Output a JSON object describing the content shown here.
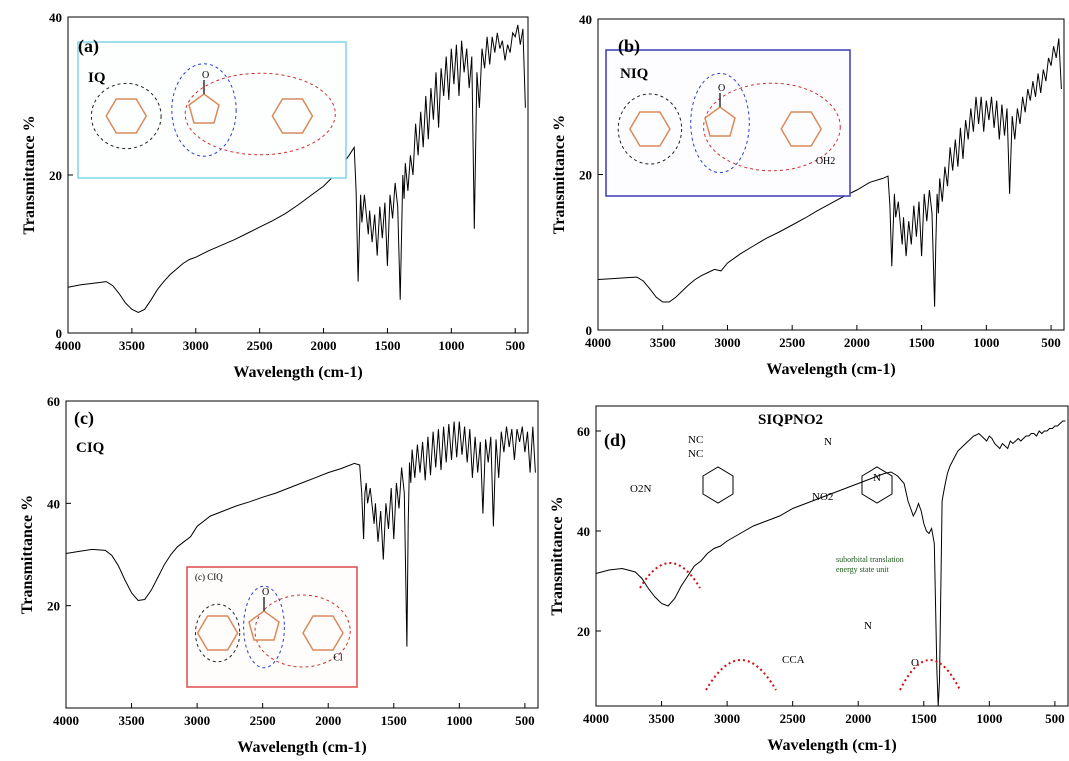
{
  "chart_data": [
    {
      "type": "line",
      "panel": "(a)",
      "sample_label": "IQ",
      "xlabel": "Wavelength (cm-1)",
      "ylabel": "Transmittance %",
      "xlim": [
        4000,
        400
      ],
      "ylim": [
        0,
        40
      ],
      "xticks": [
        4000,
        3500,
        3000,
        2500,
        2000,
        1500,
        1000,
        500
      ],
      "yticks": [
        0,
        20,
        40
      ],
      "inset_labels": [
        "(a)",
        "IQ",
        "O"
      ],
      "series": [
        {
          "x": [
            4000,
            3900,
            3800,
            3700,
            3650,
            3600,
            3550,
            3500,
            3450,
            3400,
            3350,
            3300,
            3250,
            3200,
            3150,
            3100,
            3050,
            3000,
            2900,
            2800,
            2700,
            2600,
            2500,
            2400,
            2300,
            2200,
            2100,
            2000,
            1900,
            1800,
            1760,
            1745,
            1730,
            1720,
            1710,
            1700,
            1680,
            1650,
            1640,
            1620,
            1600,
            1580,
            1560,
            1540,
            1520,
            1500,
            1480,
            1460,
            1440,
            1420,
            1400,
            1390,
            1380,
            1370,
            1360,
            1340,
            1320,
            1300,
            1280,
            1260,
            1240,
            1220,
            1200,
            1180,
            1160,
            1140,
            1120,
            1100,
            1080,
            1060,
            1040,
            1020,
            1000,
            980,
            960,
            940,
            920,
            900,
            880,
            860,
            840,
            820,
            800,
            780,
            760,
            740,
            720,
            700,
            680,
            660,
            640,
            620,
            600,
            580,
            560,
            540,
            520,
            500,
            480,
            460,
            440,
            420
          ],
          "y": [
            5.8,
            6.1,
            6.3,
            6.5,
            6.0,
            5.0,
            3.8,
            3.0,
            2.6,
            3.0,
            4.2,
            5.5,
            6.5,
            7.4,
            8.1,
            8.8,
            9.3,
            9.6,
            10.4,
            11.1,
            11.8,
            12.6,
            13.4,
            14.2,
            15.1,
            16.2,
            17.4,
            18.6,
            20.2,
            22.5,
            23.5,
            18.0,
            6.5,
            12.0,
            17.5,
            14.0,
            17.5,
            12.5,
            15.5,
            11.5,
            15.0,
            9.8,
            16.0,
            12.0,
            16.5,
            8.5,
            17.5,
            14.5,
            19.0,
            16.0,
            4.2,
            12.0,
            20.0,
            17.0,
            21.5,
            18.0,
            22.5,
            20.0,
            26.5,
            22.5,
            28.0,
            23.5,
            30.0,
            24.5,
            31.0,
            27.0,
            33.0,
            26.0,
            33.5,
            30.0,
            35.0,
            29.5,
            36.0,
            31.5,
            36.5,
            30.0,
            37.0,
            33.0,
            36.0,
            31.0,
            35.0,
            13.2,
            33.0,
            28.5,
            36.0,
            33.5,
            37.5,
            34.0,
            37.5,
            35.5,
            38.0,
            36.0,
            37.0,
            34.5,
            36.5,
            35.5,
            38.0,
            37.5,
            39.0,
            36.5,
            38.5,
            28.5
          ]
        }
      ]
    },
    {
      "type": "line",
      "panel": "(b)",
      "sample_label": "NIQ",
      "xlabel": "Wavelength (cm-1)",
      "ylabel": "Transmittance %",
      "xlim": [
        4000,
        400
      ],
      "ylim": [
        0,
        40
      ],
      "xticks": [
        4000,
        3500,
        3000,
        2500,
        2000,
        1500,
        1000,
        500
      ],
      "yticks": [
        0,
        20,
        40
      ],
      "inset_labels": [
        "NIQ",
        "O",
        "OH2"
      ],
      "series": [
        {
          "x": [
            4000,
            3900,
            3800,
            3700,
            3650,
            3600,
            3550,
            3500,
            3450,
            3400,
            3350,
            3300,
            3250,
            3200,
            3150,
            3100,
            3050,
            3000,
            2900,
            2800,
            2700,
            2600,
            2500,
            2400,
            2300,
            2200,
            2100,
            2000,
            1900,
            1800,
            1760,
            1745,
            1730,
            1720,
            1710,
            1700,
            1680,
            1650,
            1640,
            1620,
            1600,
            1580,
            1560,
            1540,
            1520,
            1500,
            1480,
            1460,
            1440,
            1420,
            1400,
            1390,
            1380,
            1370,
            1360,
            1340,
            1320,
            1300,
            1280,
            1260,
            1240,
            1220,
            1200,
            1180,
            1160,
            1140,
            1120,
            1100,
            1080,
            1060,
            1040,
            1020,
            1000,
            980,
            960,
            940,
            920,
            900,
            880,
            860,
            840,
            820,
            800,
            780,
            760,
            740,
            720,
            700,
            680,
            660,
            640,
            620,
            600,
            580,
            560,
            540,
            520,
            500,
            480,
            460,
            440,
            420
          ],
          "y": [
            6.5,
            6.6,
            6.7,
            6.8,
            6.3,
            5.3,
            4.2,
            3.6,
            3.6,
            4.2,
            5.0,
            5.8,
            6.5,
            7.0,
            7.4,
            7.8,
            7.6,
            8.6,
            9.8,
            10.8,
            11.8,
            12.6,
            13.5,
            14.4,
            15.4,
            16.3,
            17.2,
            18.0,
            19.0,
            19.5,
            19.8,
            16.0,
            8.2,
            13.0,
            17.5,
            14.5,
            16.5,
            11.0,
            14.5,
            9.5,
            14.0,
            11.0,
            16.0,
            12.0,
            16.5,
            9.5,
            17.5,
            14.0,
            18.0,
            15.0,
            3.0,
            11.0,
            17.5,
            15.0,
            19.5,
            16.5,
            21.0,
            18.5,
            23.5,
            20.5,
            24.5,
            21.0,
            26.0,
            22.0,
            27.0,
            24.5,
            28.5,
            25.5,
            30.0,
            26.5,
            30.0,
            25.5,
            29.5,
            27.0,
            30.0,
            26.0,
            29.5,
            24.5,
            29.0,
            25.0,
            28.5,
            17.5,
            27.5,
            24.5,
            28.5,
            26.5,
            30.0,
            28.0,
            31.0,
            29.5,
            32.0,
            30.0,
            33.0,
            30.5,
            33.5,
            32.0,
            35.0,
            34.0,
            36.5,
            35.0,
            37.5,
            31.0
          ]
        }
      ]
    },
    {
      "type": "line",
      "panel": "(c)",
      "sample_label": "CIQ",
      "xlabel": "Wavelength (cm-1)",
      "ylabel": "Transmittance %",
      "xlim": [
        4000,
        400
      ],
      "ylim": [
        0,
        60
      ],
      "xticks": [
        4000,
        3500,
        3000,
        2500,
        2000,
        1500,
        1000,
        500
      ],
      "yticks": [
        20,
        40,
        60
      ],
      "inset_labels": [
        "(c) CIQ",
        "O",
        "Cl"
      ],
      "series": [
        {
          "x": [
            4000,
            3900,
            3800,
            3700,
            3650,
            3600,
            3550,
            3500,
            3450,
            3400,
            3350,
            3300,
            3250,
            3200,
            3150,
            3100,
            3050,
            3000,
            2900,
            2800,
            2700,
            2600,
            2500,
            2400,
            2300,
            2200,
            2100,
            2000,
            1900,
            1800,
            1760,
            1745,
            1730,
            1720,
            1710,
            1700,
            1680,
            1650,
            1640,
            1620,
            1600,
            1580,
            1560,
            1540,
            1520,
            1500,
            1480,
            1460,
            1440,
            1420,
            1400,
            1390,
            1380,
            1370,
            1360,
            1340,
            1320,
            1300,
            1280,
            1260,
            1240,
            1220,
            1200,
            1180,
            1160,
            1140,
            1120,
            1100,
            1080,
            1060,
            1040,
            1020,
            1000,
            980,
            960,
            940,
            920,
            900,
            880,
            860,
            840,
            820,
            800,
            780,
            760,
            740,
            720,
            700,
            680,
            660,
            640,
            620,
            600,
            580,
            560,
            540,
            520,
            500,
            480,
            460,
            440,
            420
          ],
          "y": [
            30.2,
            30.6,
            31.0,
            30.8,
            29.8,
            27.8,
            25.0,
            22.5,
            21.0,
            21.2,
            23.0,
            25.5,
            28.0,
            30.0,
            31.5,
            32.5,
            33.5,
            35.5,
            37.5,
            38.5,
            39.5,
            40.3,
            41.2,
            42.0,
            43.0,
            44.0,
            45.0,
            46.0,
            46.8,
            47.8,
            47.5,
            42.0,
            33.0,
            42.0,
            44.0,
            40.0,
            43.0,
            36.0,
            40.0,
            32.5,
            38.5,
            29.0,
            40.0,
            35.0,
            43.0,
            33.0,
            44.0,
            39.0,
            47.0,
            42.0,
            12.0,
            36.0,
            48.0,
            44.0,
            50.5,
            45.0,
            51.5,
            46.0,
            52.0,
            44.5,
            53.0,
            45.5,
            54.0,
            47.0,
            54.5,
            46.5,
            55.0,
            48.0,
            55.5,
            48.5,
            56.0,
            49.0,
            56.0,
            49.5,
            55.0,
            48.0,
            54.5,
            45.0,
            53.0,
            46.0,
            52.0,
            38.0,
            52.5,
            48.0,
            53.0,
            35.5,
            52.5,
            45.0,
            54.0,
            50.0,
            55.0,
            51.0,
            54.5,
            48.5,
            54.5,
            52.0,
            55.0,
            50.0,
            54.0,
            46.0,
            55.0,
            46.0
          ]
        }
      ]
    },
    {
      "type": "line",
      "panel": "(d)",
      "sample_label": "SIQPNO2",
      "xlabel": "Wavelength (cm-1)",
      "ylabel": "Transmittance %",
      "xlim": [
        4000,
        400
      ],
      "ylim": [
        5,
        65
      ],
      "xticks": [
        4000,
        3500,
        3000,
        2500,
        2000,
        1500,
        1000,
        500
      ],
      "yticks": [
        20,
        40,
        60
      ],
      "inset_labels": [
        "NC",
        "NC",
        "N",
        "N",
        "O2N",
        "NO2",
        "suborbital translation",
        "energy state unit",
        "CCA",
        "N",
        "O"
      ],
      "series": [
        {
          "x": [
            4000,
            3900,
            3800,
            3700,
            3650,
            3600,
            3550,
            3500,
            3450,
            3400,
            3350,
            3300,
            3250,
            3200,
            3150,
            3100,
            3050,
            3000,
            2900,
            2800,
            2700,
            2600,
            2500,
            2400,
            2300,
            2200,
            2100,
            2000,
            1900,
            1800,
            1750,
            1700,
            1650,
            1620,
            1600,
            1580,
            1560,
            1540,
            1520,
            1500,
            1480,
            1460,
            1440,
            1420,
            1400,
            1390,
            1380,
            1370,
            1360,
            1350,
            1340,
            1320,
            1300,
            1280,
            1260,
            1240,
            1220,
            1200,
            1180,
            1160,
            1140,
            1120,
            1100,
            1080,
            1060,
            1040,
            1020,
            1000,
            980,
            960,
            940,
            920,
            900,
            880,
            860,
            840,
            820,
            800,
            780,
            760,
            740,
            720,
            700,
            680,
            660,
            640,
            620,
            600,
            580,
            560,
            540,
            520,
            500,
            480,
            460,
            440,
            420
          ],
          "y": [
            31.5,
            32.2,
            32.5,
            31.8,
            30.5,
            28.5,
            26.8,
            25.5,
            25.0,
            26.5,
            29.0,
            31.0,
            33.0,
            34.0,
            35.5,
            36.5,
            37.0,
            38.0,
            39.5,
            41.0,
            42.0,
            43.0,
            44.5,
            45.5,
            46.5,
            47.5,
            48.5,
            49.5,
            50.5,
            51.5,
            51.8,
            51.0,
            49.5,
            46.0,
            44.5,
            43.0,
            44.0,
            45.5,
            44.0,
            41.5,
            40.0,
            39.5,
            40.5,
            37.5,
            12.0,
            5.0,
            10.0,
            28.0,
            46.0,
            47.5,
            49.0,
            51.5,
            53.0,
            54.0,
            55.0,
            56.0,
            56.5,
            57.0,
            57.5,
            58.0,
            58.5,
            59.0,
            59.2,
            59.5,
            59.0,
            58.5,
            58.0,
            59.0,
            58.5,
            57.5,
            57.0,
            56.5,
            57.5,
            57.0,
            56.5,
            58.0,
            57.5,
            58.0,
            58.5,
            58.0,
            58.5,
            59.0,
            59.0,
            59.5,
            59.5,
            59.0,
            60.0,
            59.5,
            60.0,
            60.0,
            60.5,
            60.5,
            61.0,
            61.0,
            61.5,
            62.0,
            62.0
          ]
        }
      ]
    }
  ]
}
